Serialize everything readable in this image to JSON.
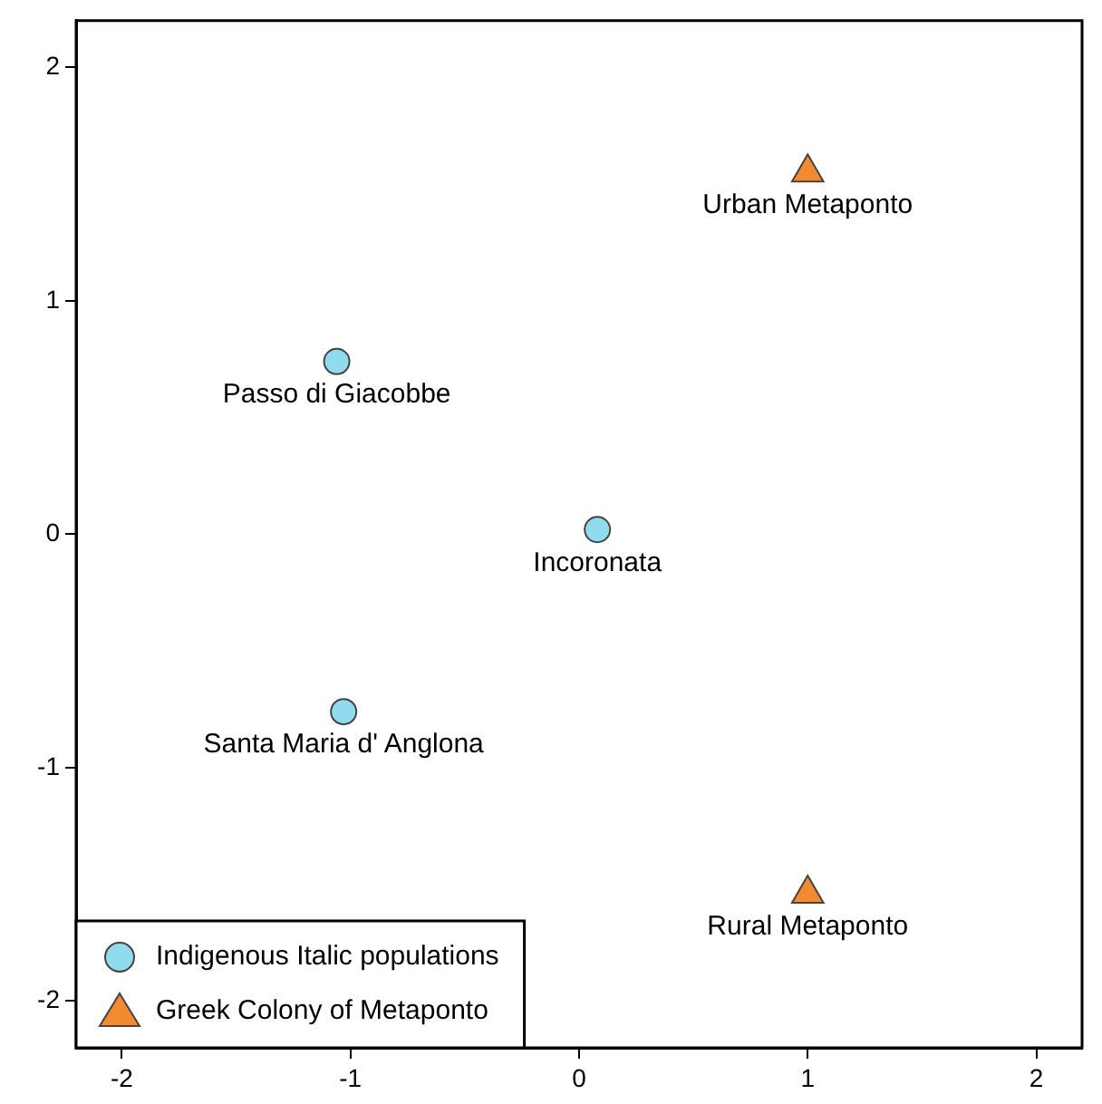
{
  "chart_data": {
    "type": "scatter",
    "xlim": [
      -2.2,
      2.2
    ],
    "ylim": [
      -2.2,
      2.2
    ],
    "xticks": [
      -2,
      -1,
      0,
      1,
      2
    ],
    "yticks": [
      -2,
      -1,
      0,
      1,
      2
    ],
    "grid": false,
    "legend": "bottom left",
    "series": [
      {
        "name": "Indigenous Italic populations",
        "color": "#8fdcef",
        "marker": "circle",
        "x": [
          -1.06,
          0.08,
          -1.03
        ],
        "values": [
          0.74,
          0.02,
          -0.76
        ]
      },
      {
        "name": "Greek Colony of Metaponto",
        "color": "#f28a30",
        "marker": "triangle",
        "x": [
          1.0,
          1.0
        ],
        "values": [
          1.55,
          -1.54
        ]
      }
    ],
    "annotations": [
      {
        "text": "Passo di Giacobbe",
        "x": -1.06,
        "y": 0.74
      },
      {
        "text": "Incoronata",
        "x": 0.08,
        "y": 0.02
      },
      {
        "text": "Santa Maria d' Anglona",
        "x": -1.03,
        "y": -0.76
      },
      {
        "text": "Urban Metaponto",
        "x": 1.0,
        "y": 1.55
      },
      {
        "text": "Rural Metaponto",
        "x": 1.0,
        "y": -1.54
      }
    ]
  }
}
